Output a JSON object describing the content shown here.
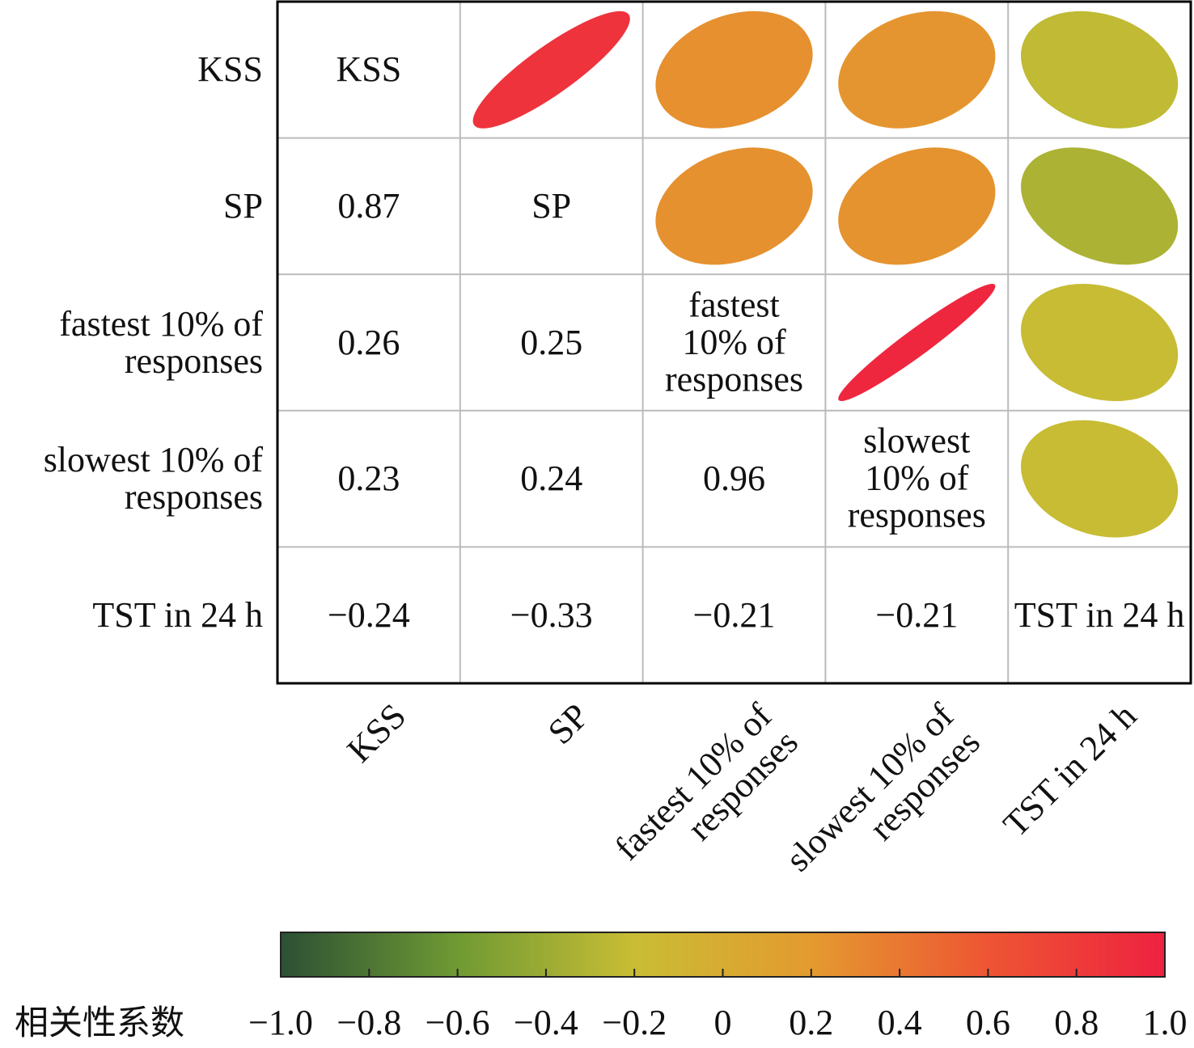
{
  "chart_data": {
    "type": "corrplot",
    "variables": [
      "KSS",
      "SP",
      "fastest 10% of responses",
      "slowest 10% of responses",
      "TST in 24 h"
    ],
    "values": [
      [],
      [
        0.87
      ],
      [
        0.26,
        0.25
      ],
      [
        0.23,
        0.24,
        0.96
      ],
      [
        -0.24,
        -0.33,
        -0.21,
        -0.21
      ]
    ],
    "value_labels": [
      [],
      [
        "0.87"
      ],
      [
        "0.26",
        "0.25"
      ],
      [
        "0.23",
        "0.24",
        "0.96"
      ],
      [
        "−0.24",
        "−0.33",
        "−0.21",
        "−0.21"
      ]
    ],
    "colorbar": {
      "title": "相关性系数",
      "lim": [
        -1,
        1
      ],
      "ticks": [
        {
          "value": -1,
          "label": "−1.0"
        },
        {
          "value": -0.8,
          "label": "−0.8"
        },
        {
          "value": -0.6,
          "label": "−0.6"
        },
        {
          "value": -0.4,
          "label": "−0.4"
        },
        {
          "value": -0.2,
          "label": "−0.2"
        },
        0,
        0.2,
        0.4,
        0.6,
        0.8,
        {
          "value": 1,
          "label": "1.0"
        }
      ],
      "colormap": [
        "#2c5034",
        "#6f9a33",
        "#c9bd34",
        "#e49a2f",
        "#ee5533",
        "#ee2240"
      ]
    }
  }
}
